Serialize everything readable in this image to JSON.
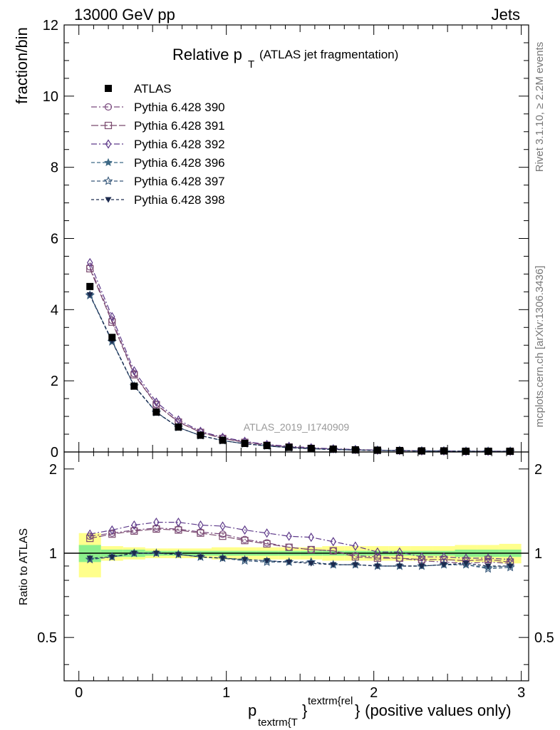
{
  "header": {
    "left": "13000 GeV pp",
    "right": "Jets"
  },
  "side_labels": {
    "rivet": "Rivet 3.1.10, ≥ 2.2M events",
    "mcplots": "mcplots.cern.ch [arXiv:1306.3436]"
  },
  "chart_data": {
    "type": "scatter",
    "title": "Relative p_T (ATLAS jet fragmentation)",
    "title_main": "Relative p",
    "title_sub": "T",
    "title_rest": "(ATLAS jet fragmentation)",
    "analysis_label": "ATLAS_2019_I1740909",
    "ylabel": "fraction/bin",
    "ratio_ylabel": "Ratio to ATLAS",
    "xlabel": {
      "p": "p",
      "sub": "textrm{T",
      "brace1": "}",
      "sup": "textrm{rel",
      "brace2": "}",
      "rest": " (positive values only)"
    },
    "xlim": [
      -0.1,
      3.05
    ],
    "ylim": [
      0,
      12
    ],
    "ratio_ylim": [
      0.35,
      2.3
    ],
    "x_ticks": [
      "0",
      "1",
      "2",
      "3"
    ],
    "y_ticks": [
      "0",
      "2",
      "4",
      "6",
      "8",
      "10",
      "12"
    ],
    "ratio_y_ticks": [
      "0.5",
      "1",
      "2"
    ],
    "x": [
      0.075,
      0.225,
      0.375,
      0.525,
      0.675,
      0.825,
      0.975,
      1.125,
      1.275,
      1.425,
      1.575,
      1.725,
      1.875,
      2.025,
      2.175,
      2.325,
      2.475,
      2.625,
      2.775,
      2.925
    ],
    "bands": {
      "outer": [
        0.18,
        0.06,
        0.05,
        0.04,
        0.04,
        0.04,
        0.05,
        0.05,
        0.05,
        0.05,
        0.05,
        0.06,
        0.06,
        0.06,
        0.06,
        0.06,
        0.06,
        0.07,
        0.07,
        0.08
      ],
      "inner": [
        0.07,
        0.03,
        0.03,
        0.02,
        0.02,
        0.02,
        0.02,
        0.02,
        0.02,
        0.02,
        0.02,
        0.02,
        0.02,
        0.02,
        0.02,
        0.02,
        0.02,
        0.03,
        0.03,
        0.03
      ]
    },
    "data": {
      "name": "ATLAS",
      "values": [
        4.65,
        3.22,
        1.85,
        1.12,
        0.7,
        0.47,
        0.33,
        0.24,
        0.18,
        0.13,
        0.1,
        0.08,
        0.06,
        0.05,
        0.04,
        0.03,
        0.03,
        0.02,
        0.02,
        0.02
      ]
    },
    "series": [
      {
        "name": "Pythia 6.428 390",
        "color": "#7a4a7e",
        "marker": "circle-open",
        "dash": "8,3,2,3",
        "values": [
          5.2,
          3.7,
          2.2,
          1.34,
          0.85,
          0.56,
          0.39,
          0.28,
          0.2,
          0.14,
          0.11,
          0.08,
          0.06,
          0.05,
          0.04,
          0.03,
          0.03,
          0.02,
          0.02,
          0.02
        ],
        "ratio": [
          1.15,
          1.18,
          1.21,
          1.23,
          1.22,
          1.19,
          1.17,
          1.12,
          1.09,
          1.05,
          1.03,
          1.02,
          0.98,
          0.97,
          0.96,
          0.94,
          0.93,
          0.92,
          0.93,
          0.92
        ]
      },
      {
        "name": "Pythia 6.428 391",
        "color": "#7a4a6e",
        "marker": "square-open",
        "dash": "10,3",
        "values": [
          5.15,
          3.65,
          2.17,
          1.33,
          0.84,
          0.55,
          0.38,
          0.27,
          0.19,
          0.14,
          0.1,
          0.08,
          0.06,
          0.05,
          0.04,
          0.03,
          0.03,
          0.02,
          0.02,
          0.02
        ],
        "ratio": [
          1.13,
          1.17,
          1.2,
          1.22,
          1.21,
          1.18,
          1.15,
          1.11,
          1.08,
          1.05,
          1.03,
          1.02,
          0.97,
          0.96,
          0.96,
          0.95,
          0.95,
          0.94,
          0.95,
          0.93
        ]
      },
      {
        "name": "Pythia 6.428 392",
        "color": "#5e3a8a",
        "marker": "diamond-open",
        "dash": "8,3,2,3",
        "values": [
          5.32,
          3.8,
          2.28,
          1.4,
          0.9,
          0.58,
          0.41,
          0.3,
          0.21,
          0.16,
          0.12,
          0.09,
          0.07,
          0.05,
          0.04,
          0.03,
          0.03,
          0.02,
          0.02,
          0.02
        ],
        "ratio": [
          1.17,
          1.21,
          1.26,
          1.29,
          1.29,
          1.26,
          1.25,
          1.21,
          1.18,
          1.15,
          1.14,
          1.1,
          1.06,
          1.01,
          1.01,
          0.97,
          0.97,
          0.96,
          0.96,
          0.95
        ]
      },
      {
        "name": "Pythia 6.428 396",
        "color": "#3f6a86",
        "marker": "star-filled",
        "dash": "5,3",
        "values": [
          4.42,
          3.12,
          1.86,
          1.12,
          0.69,
          0.46,
          0.32,
          0.23,
          0.17,
          0.12,
          0.09,
          0.07,
          0.055,
          0.045,
          0.036,
          0.027,
          0.027,
          0.018,
          0.018,
          0.018
        ],
        "ratio": [
          0.95,
          0.97,
          1.0,
          1.0,
          0.99,
          0.97,
          0.96,
          0.95,
          0.94,
          0.93,
          0.93,
          0.91,
          0.91,
          0.9,
          0.9,
          0.9,
          0.91,
          0.91,
          0.89,
          0.9
        ]
      },
      {
        "name": "Pythia 6.428 397",
        "color": "#37587a",
        "marker": "star-open",
        "dash": "5,3",
        "values": [
          4.4,
          3.1,
          1.85,
          1.11,
          0.69,
          0.46,
          0.32,
          0.23,
          0.17,
          0.12,
          0.09,
          0.07,
          0.055,
          0.045,
          0.036,
          0.027,
          0.027,
          0.018,
          0.018,
          0.018
        ],
        "ratio": [
          0.95,
          0.97,
          1.0,
          1.0,
          0.99,
          0.97,
          0.96,
          0.94,
          0.93,
          0.93,
          0.93,
          0.91,
          0.91,
          0.9,
          0.9,
          0.9,
          0.91,
          0.91,
          0.88,
          0.89
        ]
      },
      {
        "name": "Pythia 6.428 398",
        "color": "#1c2a4e",
        "marker": "triangle-down-filled",
        "dash": "4,3",
        "values": [
          4.42,
          3.12,
          1.86,
          1.12,
          0.69,
          0.46,
          0.32,
          0.23,
          0.17,
          0.12,
          0.09,
          0.07,
          0.055,
          0.045,
          0.036,
          0.027,
          0.027,
          0.018,
          0.018,
          0.018
        ],
        "ratio": [
          0.96,
          0.97,
          1.0,
          1.0,
          0.99,
          0.97,
          0.96,
          0.95,
          0.94,
          0.93,
          0.92,
          0.91,
          0.91,
          0.9,
          0.9,
          0.9,
          0.91,
          0.92,
          0.9,
          0.9
        ]
      }
    ]
  }
}
